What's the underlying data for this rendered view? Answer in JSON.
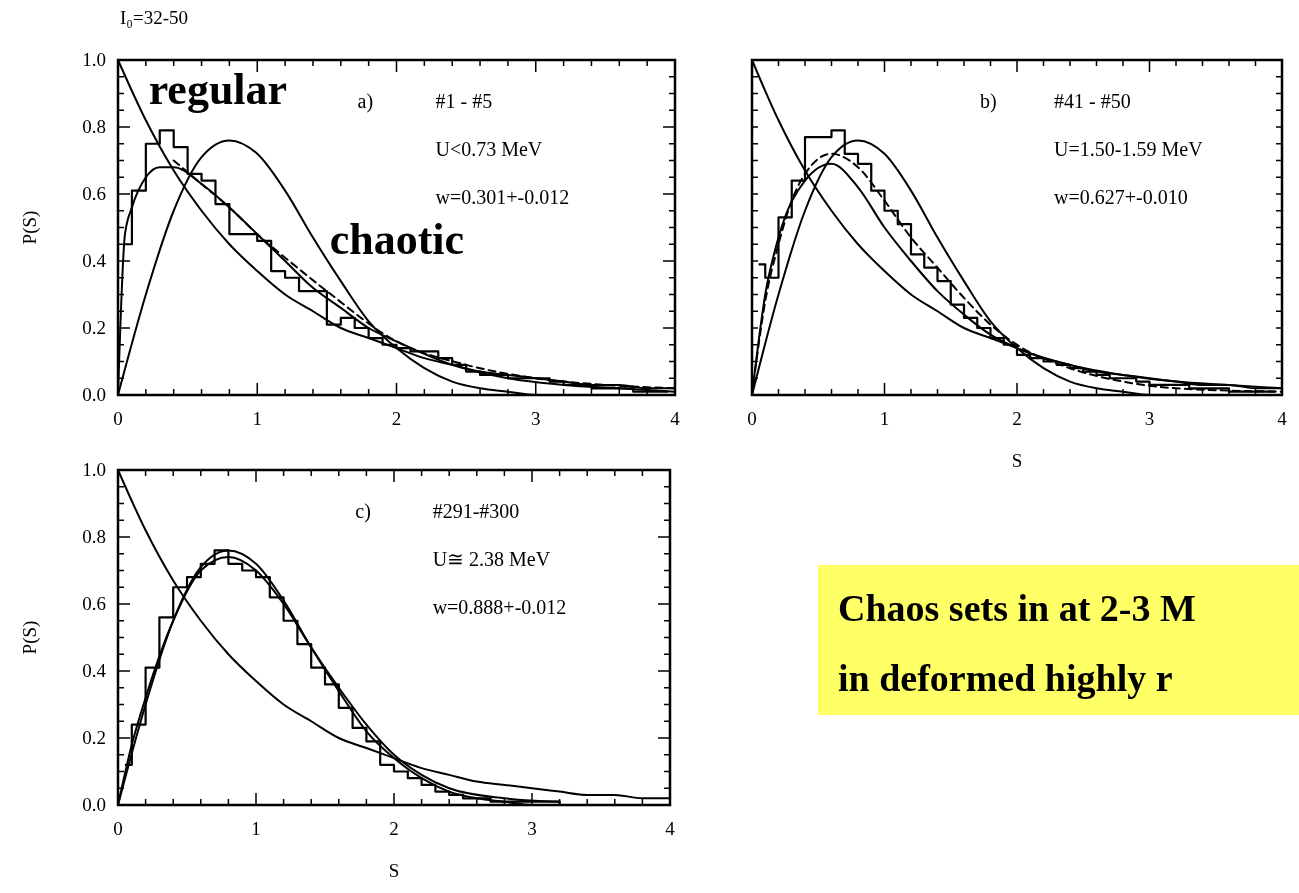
{
  "chart_data": [
    {
      "type": "line",
      "title": "a)",
      "subtitle": "I₀=32-50",
      "ylabel": "P(S)",
      "xlim": [
        0,
        4
      ],
      "ylim": [
        0,
        1
      ],
      "tick_labels": true,
      "xticks": [
        0,
        {
          "value": 0.2,
          "label": null
        },
        {
          "value": 0.4,
          "label": null
        },
        {
          "value": 0.6,
          "label": null
        },
        {
          "value": 0.8,
          "label": null
        },
        1,
        {
          "value": 1.2,
          "label": null
        },
        {
          "value": 1.4,
          "label": null
        },
        {
          "value": 1.6,
          "label": null
        },
        {
          "value": 1.8,
          "label": null
        },
        2,
        {
          "value": 2.2,
          "label": null
        },
        {
          "value": 2.4,
          "label": null
        },
        {
          "value": 2.6,
          "label": null
        },
        {
          "value": 2.8,
          "label": null
        },
        3,
        {
          "value": 3.2,
          "label": null
        },
        {
          "value": 3.4,
          "label": null
        },
        {
          "value": 3.6,
          "label": null
        },
        {
          "value": 3.8,
          "label": null
        },
        4
      ],
      "yticks": [
        {
          "value": 0,
          "label": "0.0"
        },
        {
          "value": 0.05,
          "label": null
        },
        {
          "value": 0.1,
          "label": null
        },
        {
          "value": 0.15,
          "label": null
        },
        {
          "value": 0.2,
          "label": "0.2"
        },
        {
          "value": 0.25,
          "label": null
        },
        {
          "value": 0.3,
          "label": null
        },
        {
          "value": 0.35,
          "label": null
        },
        {
          "value": 0.4,
          "label": "0.4"
        },
        {
          "value": 0.45,
          "label": null
        },
        {
          "value": 0.5,
          "label": null
        },
        {
          "value": 0.55,
          "label": null
        },
        {
          "value": 0.6,
          "label": "0.6"
        },
        {
          "value": 0.65,
          "label": null
        },
        {
          "value": 0.7,
          "label": null
        },
        {
          "value": 0.75,
          "label": null
        },
        {
          "value": 0.8,
          "label": "0.8"
        },
        {
          "value": 0.85,
          "label": null
        },
        {
          "value": 0.9,
          "label": null
        },
        {
          "value": 0.95,
          "label": null
        },
        {
          "value": 1,
          "label": "1.0"
        }
      ],
      "annotations": [
        "#1 - #5",
        "U<0.73 MeV",
        "w=0.301+-0.012"
      ],
      "series": [
        {
          "type": "step",
          "color": "#000000",
          "x": [
            0.05,
            0.15,
            0.25,
            0.35,
            0.45,
            0.55,
            0.65,
            0.75,
            0.85,
            0.95,
            1.05,
            1.15,
            1.25,
            1.35,
            1.45,
            1.55,
            1.65,
            1.75,
            1.85,
            1.95,
            2.05,
            2.15,
            2.25,
            2.35,
            2.45,
            2.55,
            2.65,
            2.75,
            2.85,
            2.95,
            3.05,
            3.15,
            3.25,
            3.35,
            3.45,
            3.55,
            3.65,
            3.75,
            3.85,
            3.95
          ],
          "values": [
            0.45,
            0.61,
            0.75,
            0.79,
            0.74,
            0.66,
            0.64,
            0.57,
            0.48,
            0.48,
            0.46,
            0.37,
            0.35,
            0.31,
            0.31,
            0.21,
            0.23,
            0.2,
            0.17,
            0.15,
            0.14,
            0.13,
            0.13,
            0.11,
            0.09,
            0.07,
            0.06,
            0.06,
            0.05,
            0.05,
            0.05,
            0.04,
            0.03,
            0.03,
            0.02,
            0.02,
            0.02,
            0.01,
            0.01,
            0.01
          ]
        },
        {
          "type": "line",
          "name": "regular",
          "color": "#000000",
          "x": [
            0,
            0.2,
            0.4,
            0.6,
            0.8,
            1,
            1.2,
            1.4,
            1.6,
            1.8,
            2,
            2.2,
            2.4,
            2.6,
            2.8,
            3,
            3.2,
            3.4,
            3.6,
            3.8,
            4
          ],
          "values": [
            1,
            0.82,
            0.67,
            0.55,
            0.45,
            0.37,
            0.3,
            0.25,
            0.2,
            0.17,
            0.14,
            0.11,
            0.09,
            0.07,
            0.06,
            0.05,
            0.04,
            0.03,
            0.03,
            0.02,
            0.02
          ]
        },
        {
          "type": "line",
          "name": "chaotic",
          "color": "#000000",
          "x": [
            0,
            0.2,
            0.4,
            0.6,
            0.8,
            1,
            1.2,
            1.4,
            1.6,
            1.8,
            2,
            2.2,
            2.4,
            2.6,
            2.8,
            3,
            3.2,
            3.4,
            3.6,
            3.8,
            4
          ],
          "values": [
            0,
            0.3,
            0.55,
            0.71,
            0.76,
            0.72,
            0.61,
            0.47,
            0.34,
            0.22,
            0.14,
            0.08,
            0.04,
            0.02,
            0.01,
            0,
            0,
            0,
            0,
            0,
            0
          ]
        },
        {
          "type": "line",
          "color": "#000000",
          "x": [
            0,
            0.05,
            0.1,
            0.2,
            0.3,
            0.4,
            0.6,
            0.8,
            1,
            1.2,
            1.4,
            1.6,
            1.8,
            2,
            2.4,
            2.8,
            3.2,
            3.6,
            4
          ],
          "values": [
            0,
            0.48,
            0.56,
            0.65,
            0.68,
            0.68,
            0.63,
            0.56,
            0.48,
            0.4,
            0.32,
            0.26,
            0.2,
            0.16,
            0.09,
            0.05,
            0.03,
            0.02,
            0.01
          ]
        },
        {
          "type": "line",
          "color": "#000000",
          "line_style": "dashed",
          "x": [
            0.4,
            0.6,
            0.8,
            1,
            1.2,
            1.5,
            2,
            2.5,
            3,
            3.5,
            4
          ],
          "values": [
            0.7,
            0.63,
            0.56,
            0.48,
            0.41,
            0.31,
            0.16,
            0.09,
            0.05,
            0.03,
            0.02
          ]
        }
      ]
    },
    {
      "type": "line",
      "title": "b)",
      "xlabel": "S",
      "xlim": [
        0,
        4
      ],
      "ylim": [
        0,
        1
      ],
      "tick_labels": "x",
      "xticks": [
        0,
        {
          "value": 0.2,
          "label": null
        },
        {
          "value": 0.4,
          "label": null
        },
        {
          "value": 0.6,
          "label": null
        },
        {
          "value": 0.8,
          "label": null
        },
        1,
        {
          "value": 1.2,
          "label": null
        },
        {
          "value": 1.4,
          "label": null
        },
        {
          "value": 1.6,
          "label": null
        },
        {
          "value": 1.8,
          "label": null
        },
        2,
        {
          "value": 2.2,
          "label": null
        },
        {
          "value": 2.4,
          "label": null
        },
        {
          "value": 2.6,
          "label": null
        },
        {
          "value": 2.8,
          "label": null
        },
        3,
        {
          "value": 3.2,
          "label": null
        },
        {
          "value": 3.4,
          "label": null
        },
        {
          "value": 3.6,
          "label": null
        },
        {
          "value": 3.8,
          "label": null
        },
        4
      ],
      "yticks": [
        {
          "value": 0,
          "label": null
        },
        {
          "value": 0.05,
          "label": null
        },
        {
          "value": 0.1,
          "label": null
        },
        {
          "value": 0.15,
          "label": null
        },
        {
          "value": 0.2,
          "label": null
        },
        {
          "value": 0.25,
          "label": null
        },
        {
          "value": 0.3,
          "label": null
        },
        {
          "value": 0.35,
          "label": null
        },
        {
          "value": 0.4,
          "label": null
        },
        {
          "value": 0.45,
          "label": null
        },
        {
          "value": 0.5,
          "label": null
        },
        {
          "value": 0.55,
          "label": null
        },
        {
          "value": 0.6,
          "label": null
        },
        {
          "value": 0.65,
          "label": null
        },
        {
          "value": 0.7,
          "label": null
        },
        {
          "value": 0.75,
          "label": null
        },
        {
          "value": 0.8,
          "label": null
        },
        {
          "value": 0.85,
          "label": null
        },
        {
          "value": 0.9,
          "label": null
        },
        {
          "value": 0.95,
          "label": null
        },
        {
          "value": 1,
          "label": null
        }
      ],
      "annotations": [
        "#41 - #50",
        "U=1.50-1.59 MeV",
        "w=0.627+-0.010"
      ],
      "series": [
        {
          "type": "step",
          "color": "#000000",
          "x": [
            0.05,
            0.15,
            0.25,
            0.35,
            0.45,
            0.55,
            0.65,
            0.75,
            0.85,
            0.95,
            1.05,
            1.15,
            1.25,
            1.35,
            1.45,
            1.55,
            1.65,
            1.75,
            1.85,
            1.95,
            2.05,
            2.15,
            2.25,
            2.35,
            2.45,
            2.55,
            2.65,
            2.75,
            2.85,
            2.95,
            3.05,
            3.15,
            3.25,
            3.35,
            3.45,
            3.55,
            3.65,
            3.75,
            3.85,
            3.95
          ],
          "values": [
            0.39,
            0.35,
            0.53,
            0.64,
            0.77,
            0.77,
            0.79,
            0.72,
            0.69,
            0.61,
            0.55,
            0.51,
            0.42,
            0.38,
            0.34,
            0.27,
            0.23,
            0.2,
            0.17,
            0.15,
            0.12,
            0.11,
            0.1,
            0.09,
            0.08,
            0.07,
            0.06,
            0.05,
            0.05,
            0.04,
            0.03,
            0.03,
            0.03,
            0.02,
            0.02,
            0.02,
            0.01,
            0.01,
            0.01,
            0.01
          ]
        },
        {
          "type": "line",
          "color": "#000000",
          "x": [
            0,
            0.2,
            0.4,
            0.6,
            0.8,
            1,
            1.2,
            1.4,
            1.6,
            1.8,
            2,
            2.2,
            2.4,
            2.6,
            2.8,
            3,
            3.2,
            3.4,
            3.6,
            3.8,
            4
          ],
          "values": [
            1,
            0.82,
            0.67,
            0.55,
            0.45,
            0.37,
            0.3,
            0.25,
            0.2,
            0.17,
            0.14,
            0.11,
            0.09,
            0.07,
            0.06,
            0.05,
            0.04,
            0.03,
            0.03,
            0.02,
            0.02
          ]
        },
        {
          "type": "line",
          "color": "#000000",
          "x": [
            0,
            0.2,
            0.4,
            0.6,
            0.8,
            1,
            1.2,
            1.4,
            1.6,
            1.8,
            2,
            2.2,
            2.4,
            2.6,
            2.8,
            3,
            3.2,
            3.4,
            3.6,
            3.8,
            4
          ],
          "values": [
            0,
            0.3,
            0.55,
            0.71,
            0.76,
            0.72,
            0.61,
            0.47,
            0.34,
            0.22,
            0.14,
            0.08,
            0.04,
            0.02,
            0.01,
            0,
            0,
            0,
            0,
            0,
            0
          ]
        },
        {
          "type": "line",
          "color": "#000000",
          "x": [
            0,
            0.1,
            0.2,
            0.4,
            0.6,
            0.8,
            1,
            1.2,
            1.4,
            1.6,
            1.8,
            2,
            2.4,
            2.8,
            3.2,
            3.6,
            4
          ],
          "values": [
            0,
            0.3,
            0.47,
            0.64,
            0.69,
            0.62,
            0.5,
            0.4,
            0.31,
            0.24,
            0.18,
            0.14,
            0.09,
            0.06,
            0.04,
            0.03,
            0.02
          ]
        },
        {
          "type": "line",
          "color": "#000000",
          "line_style": "dashed",
          "x": [
            0,
            0.1,
            0.2,
            0.3,
            0.4,
            0.6,
            0.8,
            1,
            1.2,
            1.4,
            1.6,
            1.8,
            2,
            2.4,
            2.8,
            3.2,
            4
          ],
          "values": [
            0,
            0.28,
            0.45,
            0.58,
            0.66,
            0.72,
            0.68,
            0.58,
            0.47,
            0.38,
            0.29,
            0.21,
            0.15,
            0.08,
            0.04,
            0.02,
            0.01
          ]
        }
      ]
    },
    {
      "type": "line",
      "title": "c)",
      "xlabel": "S",
      "ylabel": "P(S)",
      "xlim": [
        0,
        4
      ],
      "ylim": [
        0,
        1
      ],
      "tick_labels": true,
      "xticks": [
        0,
        {
          "value": 0.2,
          "label": null
        },
        {
          "value": 0.4,
          "label": null
        },
        {
          "value": 0.6,
          "label": null
        },
        {
          "value": 0.8,
          "label": null
        },
        1,
        {
          "value": 1.2,
          "label": null
        },
        {
          "value": 1.4,
          "label": null
        },
        {
          "value": 1.6,
          "label": null
        },
        {
          "value": 1.8,
          "label": null
        },
        2,
        {
          "value": 2.2,
          "label": null
        },
        {
          "value": 2.4,
          "label": null
        },
        {
          "value": 2.6,
          "label": null
        },
        {
          "value": 2.8,
          "label": null
        },
        3,
        {
          "value": 3.2,
          "label": null
        },
        {
          "value": 3.4,
          "label": null
        },
        {
          "value": 3.6,
          "label": null
        },
        {
          "value": 3.8,
          "label": null
        },
        4
      ],
      "yticks": [
        {
          "value": 0,
          "label": "0.0"
        },
        {
          "value": 0.05,
          "label": null
        },
        {
          "value": 0.1,
          "label": null
        },
        {
          "value": 0.15,
          "label": null
        },
        {
          "value": 0.2,
          "label": "0.2"
        },
        {
          "value": 0.25,
          "label": null
        },
        {
          "value": 0.3,
          "label": null
        },
        {
          "value": 0.35,
          "label": null
        },
        {
          "value": 0.4,
          "label": "0.4"
        },
        {
          "value": 0.45,
          "label": null
        },
        {
          "value": 0.5,
          "label": null
        },
        {
          "value": 0.55,
          "label": null
        },
        {
          "value": 0.6,
          "label": "0.6"
        },
        {
          "value": 0.65,
          "label": null
        },
        {
          "value": 0.7,
          "label": null
        },
        {
          "value": 0.75,
          "label": null
        },
        {
          "value": 0.8,
          "label": "0.8"
        },
        {
          "value": 0.85,
          "label": null
        },
        {
          "value": 0.9,
          "label": null
        },
        {
          "value": 0.95,
          "label": null
        },
        {
          "value": 1,
          "label": "1.0"
        }
      ],
      "annotations": [
        "#291-#300",
        "U≅ 2.38 MeV",
        "w=0.888+-0.012"
      ],
      "series": [
        {
          "type": "step",
          "color": "#000000",
          "x": [
            0.05,
            0.15,
            0.25,
            0.35,
            0.45,
            0.55,
            0.65,
            0.75,
            0.85,
            0.95,
            1.05,
            1.15,
            1.25,
            1.35,
            1.45,
            1.55,
            1.65,
            1.75,
            1.85,
            1.95,
            2.05,
            2.15,
            2.25,
            2.35,
            2.45,
            2.55,
            2.65,
            2.75,
            2.85,
            2.95,
            3.05,
            3.15,
            3.25,
            3.35,
            3.45,
            3.55,
            3.65,
            3.75,
            3.85,
            3.95
          ],
          "values": [
            0.12,
            0.24,
            0.41,
            0.56,
            0.65,
            0.68,
            0.72,
            0.76,
            0.72,
            0.7,
            0.68,
            0.62,
            0.55,
            0.48,
            0.41,
            0.36,
            0.29,
            0.23,
            0.19,
            0.12,
            0.1,
            0.08,
            0.06,
            0.04,
            0.03,
            0.02,
            0.02,
            0.01,
            0.01,
            0.01,
            0.01,
            0.01,
            0,
            0,
            0,
            0,
            0,
            0,
            0,
            0
          ]
        },
        {
          "type": "line",
          "color": "#000000",
          "x": [
            0,
            0.2,
            0.4,
            0.6,
            0.8,
            1,
            1.2,
            1.4,
            1.6,
            1.8,
            2,
            2.2,
            2.4,
            2.6,
            2.8,
            3,
            3.2,
            3.4,
            3.6,
            3.8,
            4
          ],
          "values": [
            1,
            0.82,
            0.67,
            0.55,
            0.45,
            0.37,
            0.3,
            0.25,
            0.2,
            0.17,
            0.14,
            0.11,
            0.09,
            0.07,
            0.06,
            0.05,
            0.04,
            0.03,
            0.03,
            0.02,
            0.02
          ]
        },
        {
          "type": "line",
          "color": "#000000",
          "x": [
            0,
            0.2,
            0.4,
            0.6,
            0.8,
            1,
            1.2,
            1.4,
            1.6,
            1.8,
            2,
            2.2,
            2.4,
            2.6,
            2.8,
            3,
            3.2,
            3.4,
            3.6,
            3.8,
            4
          ],
          "values": [
            0,
            0.3,
            0.55,
            0.71,
            0.76,
            0.72,
            0.61,
            0.47,
            0.34,
            0.22,
            0.14,
            0.08,
            0.04,
            0.02,
            0.01,
            0,
            0,
            0,
            0,
            0,
            0
          ]
        },
        {
          "type": "line",
          "color": "#000000",
          "x": [
            0,
            0.1,
            0.2,
            0.4,
            0.6,
            0.8,
            1,
            1.2,
            1.4,
            1.6,
            1.8,
            2,
            2.2,
            2.4,
            2.8,
            3.2
          ],
          "values": [
            0,
            0.18,
            0.32,
            0.55,
            0.7,
            0.74,
            0.7,
            0.6,
            0.47,
            0.35,
            0.24,
            0.15,
            0.09,
            0.05,
            0.02,
            0.01
          ]
        }
      ]
    },
    {
      "type": "other",
      "annotations": [
        "Chaos sets in at 2-3 M",
        "in deformed highly r"
      ]
    }
  ]
}
